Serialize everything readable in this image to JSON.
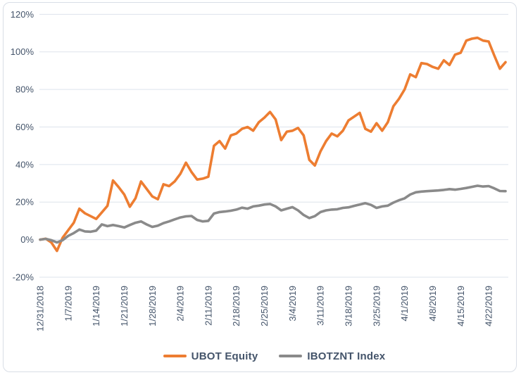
{
  "chart_data": {
    "type": "line",
    "title": "",
    "xlabel": "",
    "ylabel": "",
    "grid": true,
    "legend_position": "bottom",
    "ylim": [
      -20,
      120
    ],
    "y_ticks": [
      120,
      100,
      80,
      60,
      40,
      20,
      0,
      -20
    ],
    "y_tick_labels": [
      "120%",
      "100%",
      "80%",
      "60%",
      "40%",
      "20%",
      "0%",
      "-20%"
    ],
    "x_labels": [
      "12/31/2018",
      "1/7/2019",
      "1/14/2019",
      "1/21/2019",
      "1/28/2019",
      "2/4/2019",
      "2/11/2019",
      "2/18/2019",
      "2/25/2019",
      "3/4/2019",
      "3/11/2019",
      "3/18/2019",
      "3/25/2019",
      "4/1/2019",
      "4/8/2019",
      "4/15/2019",
      "4/22/2019"
    ],
    "points_per_label": 5,
    "unit": "percent",
    "series": [
      {
        "name": "UBOT Equity",
        "color": "#ED7D31",
        "values": [
          0,
          0.5,
          -1.5,
          -6,
          1,
          5,
          9,
          16.5,
          14,
          12.5,
          11,
          14.5,
          18,
          31.5,
          28,
          24,
          17.5,
          22,
          31,
          27,
          23,
          21.5,
          29.5,
          28.5,
          31,
          35,
          41,
          36,
          32,
          32.5,
          33.5,
          50,
          52.5,
          48.5,
          55.5,
          56.5,
          59,
          60,
          58,
          62.5,
          65,
          68,
          64,
          53,
          57.5,
          58,
          59.5,
          55.5,
          42.5,
          39.5,
          47,
          52.5,
          56.5,
          55,
          58,
          63.5,
          65.5,
          67.5,
          59,
          57.5,
          62,
          58,
          62.5,
          71,
          75,
          80,
          88,
          86.5,
          94,
          93.5,
          92,
          91,
          95.5,
          93,
          98.5,
          99.5,
          106,
          107,
          107.5,
          106,
          105.5,
          98,
          91,
          94.5
        ]
      },
      {
        "name": "IBOTZNT Index",
        "color": "#8A8A8A",
        "values": [
          0,
          0.4,
          -0.3,
          -1.5,
          -0.3,
          2,
          3.5,
          5.4,
          4.4,
          4.2,
          4.8,
          8.1,
          7.2,
          7.8,
          7.2,
          6.5,
          7.8,
          9,
          9.7,
          8.1,
          6.8,
          7.4,
          8.8,
          9.7,
          10.8,
          11.8,
          12.4,
          12.6,
          10.5,
          9.7,
          10,
          13.9,
          14.7,
          15,
          15.4,
          16,
          17,
          16.5,
          17.7,
          18.1,
          18.7,
          19,
          17.7,
          15.6,
          16.5,
          17.3,
          15.6,
          13.1,
          11.5,
          12.5,
          14.7,
          15.6,
          16,
          16.2,
          16.9,
          17.2,
          18,
          18.7,
          19.4,
          18.5,
          16.9,
          17.7,
          18.1,
          19.7,
          21,
          22,
          24,
          25.2,
          25.6,
          25.8,
          26,
          26.2,
          26.5,
          26.9,
          26.6,
          27,
          27.5,
          28.1,
          28.7,
          28.3,
          28.5,
          27.3,
          25.9,
          25.8
        ]
      }
    ],
    "styles": {
      "gridline_color": "#dde3ec",
      "axis_text_color": "#44546a",
      "legend_text_color": "#44546a",
      "background": "#ffffff",
      "frame_border_color": "#d9dee6",
      "line_width": 3.6
    }
  }
}
